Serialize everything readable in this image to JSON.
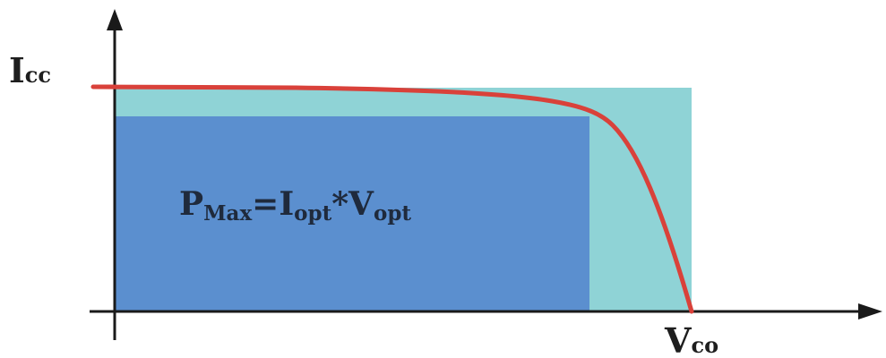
{
  "labels": {
    "icc_main": "I",
    "icc_sub": "cc",
    "vco_main": "V",
    "vco_sub": "co"
  },
  "formula": {
    "p": "P",
    "p_sub": "Max",
    "eq_i": "=I",
    "i_sub": "opt",
    "star_v": "*V",
    "v_sub": "opt"
  },
  "colors": {
    "axis": "#1a1a1a",
    "outer_rect": "#8fd3d6",
    "inner_rect": "#5b8fcf",
    "curve": "#d9413a",
    "text": "#1e1e1e"
  }
}
